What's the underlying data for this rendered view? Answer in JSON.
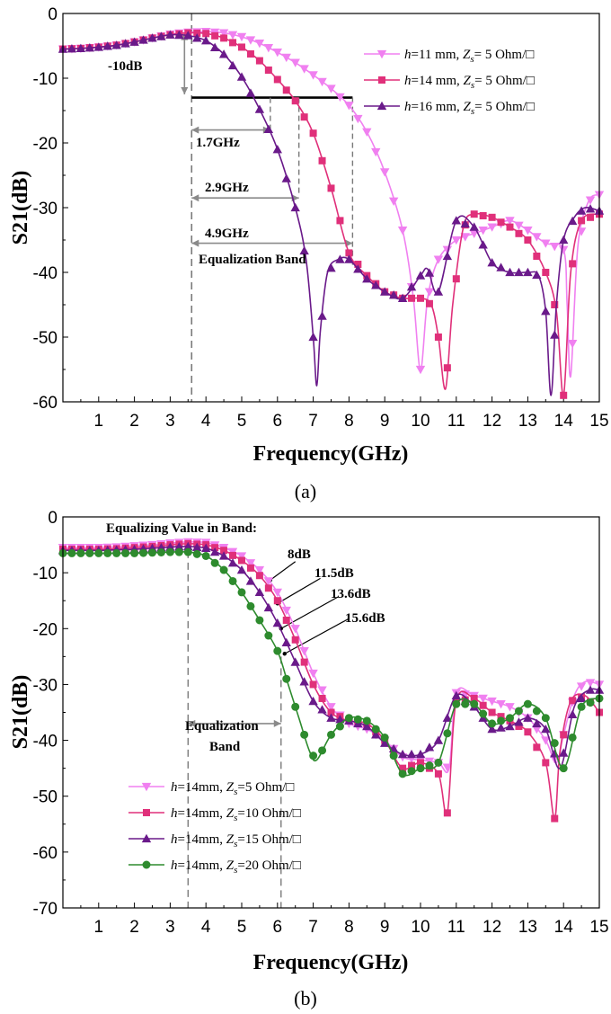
{
  "chart_data": [
    {
      "panel": "(a)",
      "type": "line",
      "xlabel": "Frequency(GHz)",
      "ylabel": "S21(dB)",
      "xlim": [
        0,
        15
      ],
      "ylim": [
        -60,
        0
      ],
      "xticks": [
        1,
        2,
        3,
        4,
        5,
        6,
        7,
        8,
        9,
        10,
        11,
        12,
        13,
        14,
        15
      ],
      "yticks": [
        0,
        -10,
        -20,
        -30,
        -40,
        -50,
        -60
      ],
      "legend_position": "top-right",
      "series": [
        {
          "legend": {
            "h_label": "h",
            "h_value": "=11 mm, ",
            "z_label": "Z",
            "z_sub": "s",
            "z_value": "= 5 Ohm/□"
          },
          "color": "#f080f0",
          "marker": "triangle-down",
          "x": [
            0,
            0.5,
            1,
            1.5,
            2,
            2.5,
            3,
            3.5,
            4,
            4.5,
            5,
            5.5,
            6,
            6.5,
            7,
            7.5,
            8,
            8.5,
            9,
            9.5,
            9.8,
            10,
            10.2,
            10.5,
            11,
            11.5,
            12,
            12.5,
            13,
            13.5,
            14,
            14.1,
            14.2,
            14.4,
            14.7,
            15
          ],
          "y": [
            -5.5,
            -5.4,
            -5.2,
            -4.9,
            -4.4,
            -3.8,
            -3.2,
            -2.9,
            -2.8,
            -3,
            -3.6,
            -4.6,
            -6,
            -7.6,
            -9.5,
            -11.6,
            -14.2,
            -18.3,
            -24.5,
            -33.5,
            -44,
            -55,
            -44,
            -38,
            -35,
            -34,
            -33,
            -32,
            -33.5,
            -35.5,
            -36.5,
            -45,
            -56,
            -36,
            -29,
            -28
          ]
        },
        {
          "legend": {
            "h_label": "h",
            "h_value": "=14 mm, ",
            "z_label": "Z",
            "z_sub": "s",
            "z_value": "= 5 Ohm/□"
          },
          "color": "#e0307a",
          "marker": "square",
          "x": [
            0,
            0.5,
            1,
            1.5,
            2,
            2.5,
            3,
            3.5,
            4,
            4.5,
            5,
            5.5,
            6,
            6.5,
            7,
            7.5,
            8,
            8.5,
            9,
            9.5,
            10,
            10.3,
            10.5,
            10.7,
            10.9,
            11.2,
            11.5,
            12,
            12.5,
            13,
            13.5,
            13.8,
            14,
            14.2,
            14.5,
            15
          ],
          "y": [
            -5.5,
            -5.4,
            -5.2,
            -4.9,
            -4.4,
            -3.8,
            -3.3,
            -3.0,
            -3.1,
            -3.8,
            -5.2,
            -7.3,
            -10.2,
            -13.5,
            -18.5,
            -27,
            -37,
            -40.5,
            -43,
            -44,
            -44,
            -45,
            -50,
            -58,
            -45,
            -33,
            -31,
            -31.5,
            -33,
            -35,
            -40,
            -46,
            -59,
            -40,
            -32,
            -31
          ]
        },
        {
          "legend": {
            "h_label": "h",
            "h_value": "=16 mm, ",
            "z_label": "Z",
            "z_sub": "s",
            "z_value": "= 5 Ohm/□"
          },
          "color": "#6a1a8a",
          "marker": "triangle-up",
          "x": [
            0,
            0.5,
            1,
            1.5,
            2,
            2.5,
            3,
            3.5,
            4,
            4.5,
            5,
            5.5,
            6,
            6.5,
            6.8,
            7.0,
            7.1,
            7.2,
            7.4,
            7.7,
            8,
            8.5,
            9,
            9.5,
            10,
            10.2,
            10.5,
            11,
            11.5,
            12,
            12.5,
            13,
            13.3,
            13.5,
            13.65,
            13.8,
            14,
            14.3,
            14.6,
            15
          ],
          "y": [
            -5.5,
            -5.4,
            -5.2,
            -4.9,
            -4.4,
            -3.8,
            -3.3,
            -3.4,
            -4.2,
            -6.3,
            -9.8,
            -14.8,
            -21,
            -30,
            -38,
            -50,
            -57.5,
            -49,
            -40,
            -38,
            -38,
            -41,
            -43,
            -44,
            -40.5,
            -39.5,
            -43,
            -32,
            -33,
            -38.5,
            -40,
            -40,
            -40.5,
            -46,
            -59,
            -45,
            -35,
            -31.5,
            -30,
            -30.5
          ]
        }
      ],
      "annotations": {
        "drop": "-10dB",
        "band1": "1.7GHz",
        "band2": "2.9GHz",
        "band3": "4.9GHz",
        "band_label": "Equalization Band"
      }
    },
    {
      "panel": "(b)",
      "type": "line",
      "xlabel": "Frequency(GHz)",
      "ylabel": "S21(dB)",
      "xlim": [
        0,
        15
      ],
      "ylim": [
        -70,
        0
      ],
      "xticks": [
        1,
        2,
        3,
        4,
        5,
        6,
        7,
        8,
        9,
        10,
        11,
        12,
        13,
        14,
        15
      ],
      "yticks": [
        0,
        -10,
        -20,
        -30,
        -40,
        -50,
        -60,
        -70
      ],
      "legend_position": "bottom-left",
      "series": [
        {
          "legend": {
            "h_label": "h",
            "h_value": "=14mm, ",
            "z_label": "Z",
            "z_sub": "s",
            "z_value": "=5 Ohm/□"
          },
          "color": "#f080f0",
          "marker": "triangle-down",
          "x": [
            0,
            0.5,
            1,
            1.5,
            2,
            2.5,
            3,
            3.5,
            4,
            4.5,
            5,
            5.5,
            6,
            6.5,
            7,
            7.5,
            8,
            8.5,
            9,
            9.5,
            10,
            10.5,
            10.8,
            11,
            11.5,
            12,
            12.5,
            13,
            13.5,
            13.8,
            14,
            14.3,
            14.6,
            15
          ],
          "y": [
            -5.5,
            -5.5,
            -5.5,
            -5.4,
            -5.2,
            -5.0,
            -4.7,
            -4.5,
            -4.6,
            -5.5,
            -7.0,
            -9.5,
            -13.5,
            -20,
            -28,
            -34,
            -37,
            -38,
            -40,
            -43,
            -43.5,
            -44,
            -45,
            -31.5,
            -32,
            -33,
            -34,
            -36,
            -40,
            -44,
            -39,
            -32,
            -29.5,
            -30
          ]
        },
        {
          "legend": {
            "h_label": "h",
            "h_value": "=14mm, ",
            "z_label": "Z",
            "z_sub": "s",
            "z_value": "=10 Ohm/□"
          },
          "color": "#e0307a",
          "marker": "square",
          "x": [
            0,
            0.5,
            1,
            1.5,
            2,
            2.5,
            3,
            3.5,
            4,
            4.5,
            5,
            5.5,
            6,
            6.5,
            7,
            7.5,
            8,
            8.5,
            9,
            9.5,
            10,
            10.5,
            10.75,
            11,
            11.5,
            12,
            12.5,
            13,
            13.5,
            13.75,
            13.9,
            14.2,
            14.6,
            15
          ],
          "y": [
            -5.8,
            -5.8,
            -5.8,
            -5.7,
            -5.5,
            -5.3,
            -5.0,
            -4.8,
            -5.0,
            -6.0,
            -7.8,
            -10.5,
            -15,
            -22,
            -30,
            -35,
            -36.5,
            -37,
            -40,
            -45,
            -44,
            -46,
            -53,
            -33,
            -32.5,
            -35,
            -36.5,
            -38.5,
            -44,
            -54,
            -42,
            -33,
            -32,
            -35
          ]
        },
        {
          "legend": {
            "h_label": "h",
            "h_value": "=14mm, ",
            "z_label": "Z",
            "z_sub": "s",
            "z_value": "=15 Ohm/□"
          },
          "color": "#6a1a8a",
          "marker": "triangle-up",
          "x": [
            0,
            0.5,
            1,
            1.5,
            2,
            2.5,
            3,
            3.5,
            4,
            4.5,
            5,
            5.5,
            6,
            6.5,
            7,
            7.5,
            8,
            8.5,
            9,
            9.5,
            10,
            10.5,
            11,
            11.5,
            12,
            12.5,
            13,
            13.5,
            13.9,
            14.3,
            14.7,
            15
          ],
          "y": [
            -6.0,
            -6.0,
            -6.0,
            -5.9,
            -5.8,
            -5.6,
            -5.4,
            -5.3,
            -5.6,
            -7.0,
            -9.5,
            -13.5,
            -19,
            -26,
            -33,
            -36,
            -36.5,
            -37.5,
            -40.5,
            -42.5,
            -42.5,
            -40,
            -32,
            -34,
            -38,
            -37.5,
            -36,
            -38,
            -45,
            -34,
            -31,
            -31
          ]
        },
        {
          "legend": {
            "h_label": "h",
            "h_value": "=14mm, ",
            "z_label": "Z",
            "z_sub": "s",
            "z_value": "=20 Ohm/□"
          },
          "color": "#2e8b2e",
          "marker": "circle",
          "x": [
            0,
            0.5,
            1,
            1.5,
            2,
            2.5,
            3,
            3.5,
            4,
            4.5,
            5,
            5.5,
            6,
            6.3,
            6.6,
            6.9,
            7.1,
            7.5,
            8,
            8.5,
            9,
            9.5,
            10,
            10.5,
            11,
            11.5,
            12,
            12.5,
            13,
            13.5,
            14,
            14.5,
            15
          ],
          "y": [
            -6.5,
            -6.5,
            -6.5,
            -6.5,
            -6.5,
            -6.4,
            -6.3,
            -6.3,
            -7.0,
            -9.5,
            -13.5,
            -18.5,
            -24,
            -30,
            -36,
            -42,
            -43.5,
            -39,
            -36,
            -36.5,
            -39.5,
            -46,
            -45,
            -44,
            -33.5,
            -33.5,
            -37,
            -36,
            -33.5,
            -36,
            -45,
            -34,
            -32.5
          ]
        }
      ],
      "annotations": {
        "title": "Equalizing Value in Band:",
        "v1": "8dB",
        "v2": "11.5dB",
        "v3": "13.6dB",
        "v4": "15.6dB",
        "band_label_1": "Equalization",
        "band_label_2": "Band"
      }
    }
  ]
}
